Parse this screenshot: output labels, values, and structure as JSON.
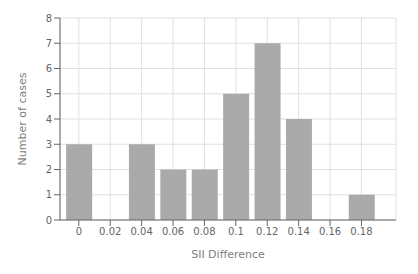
{
  "chart_data": {
    "type": "bar",
    "x": [
      0,
      0.04,
      0.06,
      0.08,
      0.1,
      0.12,
      0.14,
      0.18
    ],
    "values": [
      3,
      3,
      2,
      2,
      5,
      7,
      4,
      1
    ],
    "color": "#aaaaaa",
    "xlabel": "SII Difference",
    "ylabel": "Number of cases",
    "xlim": [
      -0.012,
      0.202
    ],
    "ylim": [
      0,
      8
    ],
    "xticks": [
      0,
      0.02,
      0.04,
      0.06,
      0.08,
      0.1,
      0.12,
      0.14,
      0.16,
      0.18
    ],
    "yticks": [
      0,
      1,
      2,
      3,
      4,
      5,
      6,
      7,
      8
    ],
    "grid": true
  }
}
